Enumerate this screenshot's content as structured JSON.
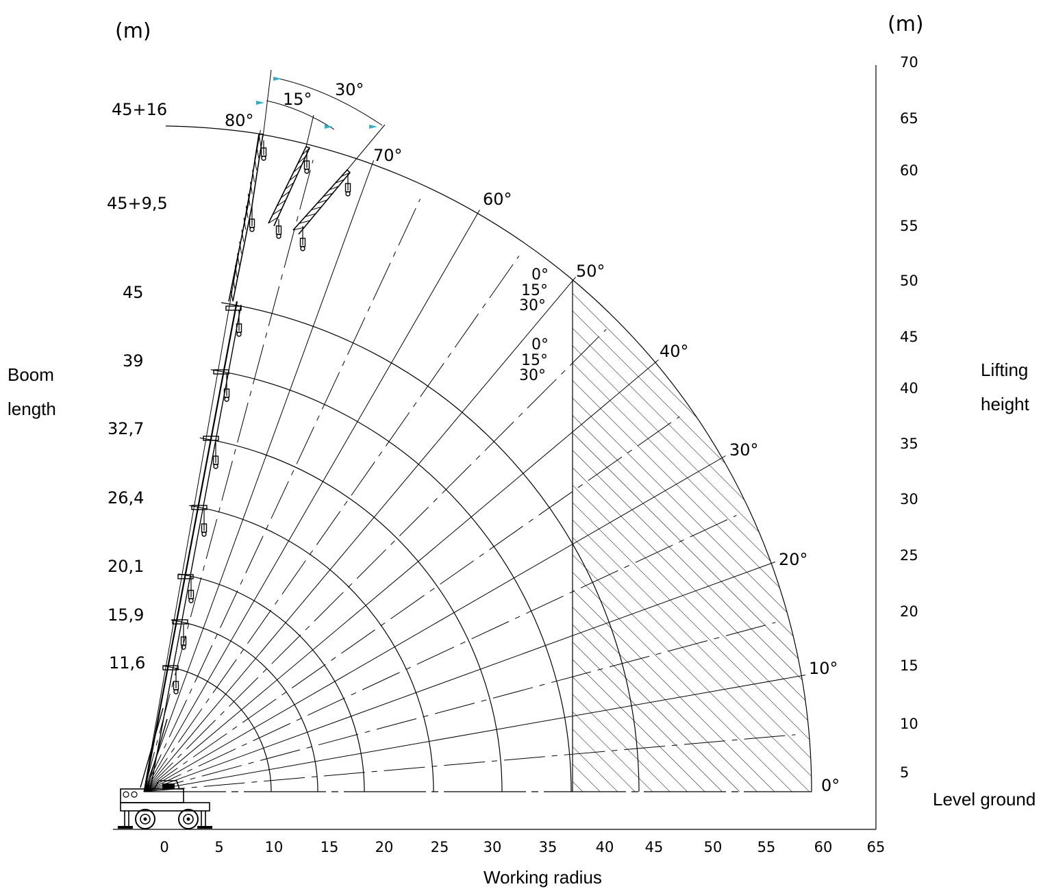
{
  "chart_data": {
    "type": "crane-working-range",
    "unit_label_left": "(m)",
    "unit_label_right": "(m)",
    "ylabel_left": [
      "Boom",
      "length"
    ],
    "ylabel_right": [
      "Lifting",
      "height"
    ],
    "xlabel": "Working radius",
    "ground_label": "Level ground",
    "x_ticks": [
      "0",
      "5",
      "10",
      "15",
      "20",
      "25",
      "30",
      "35",
      "40",
      "45",
      "50",
      "55",
      "60",
      "65"
    ],
    "y_ticks": [
      "5",
      "10",
      "15",
      "20",
      "25",
      "30",
      "35",
      "40",
      "45",
      "50",
      "55",
      "60",
      "65",
      "70"
    ],
    "xlim": [
      0,
      65
    ],
    "ylim": [
      0,
      70
    ],
    "boom_lengths": [
      {
        "label": "11,6",
        "radius": 11.6
      },
      {
        "label": "15,9",
        "radius": 15.9
      },
      {
        "label": "20,1",
        "radius": 20.1
      },
      {
        "label": "26,4",
        "radius": 26.4
      },
      {
        "label": "32,7",
        "radius": 32.7
      },
      {
        "label": "39",
        "radius": 39
      },
      {
        "label": "45",
        "radius": 45
      }
    ],
    "jib_lengths": [
      {
        "label": "45+9,5",
        "radius": 54.5
      },
      {
        "label": "45+16",
        "radius": 61
      }
    ],
    "angle_labels": [
      "0°",
      "10°",
      "20°",
      "30°",
      "40°",
      "50°",
      "60°",
      "70°",
      "80°"
    ],
    "angle_values": [
      0,
      10,
      20,
      30,
      40,
      50,
      60,
      70,
      80
    ],
    "offset_labels_upper": [
      "0°",
      "15°",
      "30°"
    ],
    "offset_labels_lower": [
      "0°",
      "15°",
      "30°"
    ],
    "jib_offset_labels": [
      "15°",
      "30°"
    ],
    "hatched_region_from_radius": 37
  }
}
